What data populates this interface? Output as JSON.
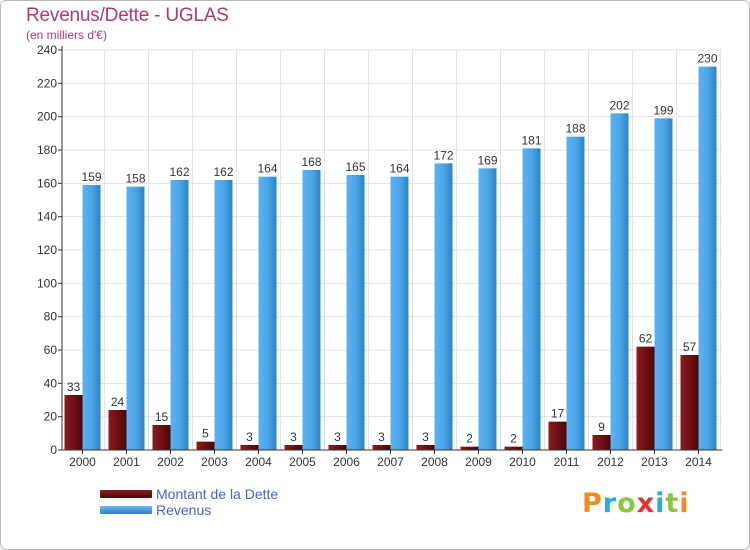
{
  "header": {
    "title": "Revenus/Dette - UGLAS",
    "subtitle": "(en milliers d'€)"
  },
  "legend": {
    "debt_label": "Montant de la Dette",
    "revenue_label": "Revenus"
  },
  "logo": {
    "text": "Proxiti"
  },
  "colors": {
    "debt": "#6b0f12",
    "revenue": "#4aa3e8",
    "title": "#b13a69",
    "legend_text": "#4c5fd6",
    "axis": "#333333",
    "grid": "#e2e2e2"
  },
  "chart_data": {
    "type": "bar",
    "categories": [
      "2000",
      "2001",
      "2002",
      "2003",
      "2004",
      "2005",
      "2006",
      "2007",
      "2008",
      "2009",
      "2010",
      "2011",
      "2012",
      "2013",
      "2014"
    ],
    "series": [
      {
        "name": "Montant de la Dette",
        "values": [
          33,
          24,
          15,
          5,
          3,
          3,
          3,
          3,
          3,
          2,
          2,
          17,
          9,
          62,
          57
        ]
      },
      {
        "name": "Revenus",
        "values": [
          159,
          158,
          162,
          162,
          164,
          168,
          165,
          164,
          172,
          169,
          181,
          188,
          202,
          199,
          230
        ]
      }
    ],
    "title": "Revenus/Dette - UGLAS",
    "ylabel": "(en milliers d'€)",
    "ylim": [
      0,
      240
    ],
    "yticks": [
      0,
      20,
      40,
      60,
      80,
      100,
      120,
      140,
      160,
      180,
      200,
      220,
      240
    ],
    "grid": true,
    "legend_position": "bottom-left"
  }
}
